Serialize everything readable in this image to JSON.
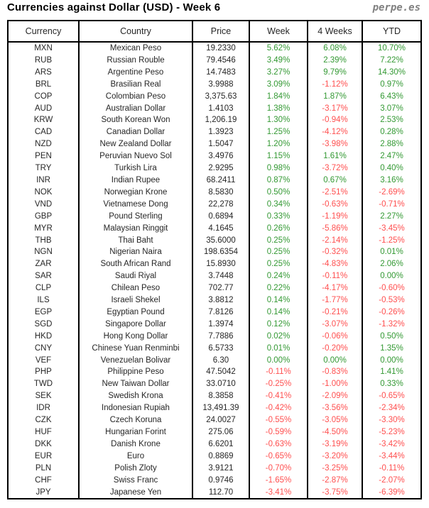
{
  "header": {
    "title": "Currencies against Dollar (USD) - Week 6",
    "logo": "perpe.es"
  },
  "colors": {
    "positive": "#339933",
    "negative": "#ff4f4f",
    "text": "#262626",
    "border": "#000000"
  },
  "chart_data": {
    "type": "table",
    "title": "Currencies against Dollar (USD) - Week 6",
    "columns": [
      "Currency",
      "Country",
      "Price",
      "Week",
      "4 Weeks",
      "YTD"
    ],
    "rows": [
      [
        "MXN",
        "Mexican Peso",
        "19.2330",
        "5.62%",
        "6.08%",
        "10.70%"
      ],
      [
        "RUB",
        "Russian Rouble",
        "79.4546",
        "3.49%",
        "2.39%",
        "7.22%"
      ],
      [
        "ARS",
        "Argentine Peso",
        "14.7483",
        "3.27%",
        "9.79%",
        "14.30%"
      ],
      [
        "BRL",
        "Brasilian Real",
        "3.9988",
        "3.09%",
        "-1.12%",
        "0.97%"
      ],
      [
        "COP",
        "Colombian Peso",
        "3,375.63",
        "1.84%",
        "1.87%",
        "6.43%"
      ],
      [
        "AUD",
        "Australian Dollar",
        "1.4103",
        "1.38%",
        "-3.17%",
        "3.07%"
      ],
      [
        "KRW",
        "South Korean Won",
        "1,206.19",
        "1.30%",
        "-0.94%",
        "2.53%"
      ],
      [
        "CAD",
        "Canadian Dollar",
        "1.3923",
        "1.25%",
        "-4.12%",
        "0.28%"
      ],
      [
        "NZD",
        "New Zealand Dollar",
        "1.5047",
        "1.20%",
        "-3.98%",
        "2.88%"
      ],
      [
        "PEN",
        "Peruvian Nuevo Sol",
        "3.4976",
        "1.15%",
        "1.61%",
        "2.47%"
      ],
      [
        "TRY",
        "Turkish Lira",
        "2.9295",
        "0.98%",
        "-3.72%",
        "0.40%"
      ],
      [
        "INR",
        "Indian Rupee",
        "68.2411",
        "0.87%",
        "0.67%",
        "3.16%"
      ],
      [
        "NOK",
        "Norwegian Krone",
        "8.5830",
        "0.50%",
        "-2.51%",
        "-2.69%"
      ],
      [
        "VND",
        "Vietnamese Dong",
        "22,278",
        "0.34%",
        "-0.63%",
        "-0.71%"
      ],
      [
        "GBP",
        "Pound Sterling",
        "0.6894",
        "0.33%",
        "-1.19%",
        "2.27%"
      ],
      [
        "MYR",
        "Malaysian Ringgit",
        "4.1645",
        "0.26%",
        "-5.86%",
        "-3.45%"
      ],
      [
        "THB",
        "Thai Baht",
        "35.6000",
        "0.25%",
        "-2.14%",
        "-1.25%"
      ],
      [
        "NGN",
        "Nigerian Naira",
        "198.6354",
        "0.25%",
        "-0.32%",
        "0.01%"
      ],
      [
        "ZAR",
        "South African Rand",
        "15.8930",
        "0.25%",
        "-4.83%",
        "2.06%"
      ],
      [
        "SAR",
        "Saudi Riyal",
        "3.7448",
        "0.24%",
        "-0.11%",
        "0.00%"
      ],
      [
        "CLP",
        "Chilean Peso",
        "702.77",
        "0.22%",
        "-4.17%",
        "-0.60%"
      ],
      [
        "ILS",
        "Israeli Shekel",
        "3.8812",
        "0.14%",
        "-1.77%",
        "-0.53%"
      ],
      [
        "EGP",
        "Egyptian Pound",
        "7.8126",
        "0.14%",
        "-0.21%",
        "-0.26%"
      ],
      [
        "SGD",
        "Singapore Dollar",
        "1.3974",
        "0.12%",
        "-3.07%",
        "-1.32%"
      ],
      [
        "HKD",
        "Hong Kong Dollar",
        "7.7886",
        "0.02%",
        "-0.06%",
        "0.50%"
      ],
      [
        "CNY",
        "Chinese Yuan Renminbi",
        "6.5733",
        "0.01%",
        "-0.20%",
        "1.35%"
      ],
      [
        "VEF",
        "Venezuelan Bolivar",
        "6.30",
        "0.00%",
        "0.00%",
        "0.00%"
      ],
      [
        "PHP",
        "Philippine Peso",
        "47.5042",
        "-0.11%",
        "-0.83%",
        "1.41%"
      ],
      [
        "TWD",
        "New Taiwan Dollar",
        "33.0710",
        "-0.25%",
        "-1.00%",
        "0.33%"
      ],
      [
        "SEK",
        "Swedish Krona",
        "8.3858",
        "-0.41%",
        "-2.09%",
        "-0.65%"
      ],
      [
        "IDR",
        "Indonesian Rupiah",
        "13,491.39",
        "-0.42%",
        "-3.56%",
        "-2.34%"
      ],
      [
        "CZK",
        "Czech Koruna",
        "24.0027",
        "-0.55%",
        "-3.05%",
        "-3.30%"
      ],
      [
        "HUF",
        "Hungarian Forint",
        "275.06",
        "-0.59%",
        "-4.50%",
        "-5.23%"
      ],
      [
        "DKK",
        "Danish Krone",
        "6.6201",
        "-0.63%",
        "-3.19%",
        "-3.42%"
      ],
      [
        "EUR",
        "Euro",
        "0.8869",
        "-0.65%",
        "-3.20%",
        "-3.44%"
      ],
      [
        "PLN",
        "Polish Zloty",
        "3.9121",
        "-0.70%",
        "-3.25%",
        "-0.11%"
      ],
      [
        "CHF",
        "Swiss Franc",
        "0.9746",
        "-1.65%",
        "-2.87%",
        "-2.07%"
      ],
      [
        "JPY",
        "Japanese Yen",
        "112.70",
        "-3.41%",
        "-3.75%",
        "-6.39%"
      ]
    ]
  }
}
